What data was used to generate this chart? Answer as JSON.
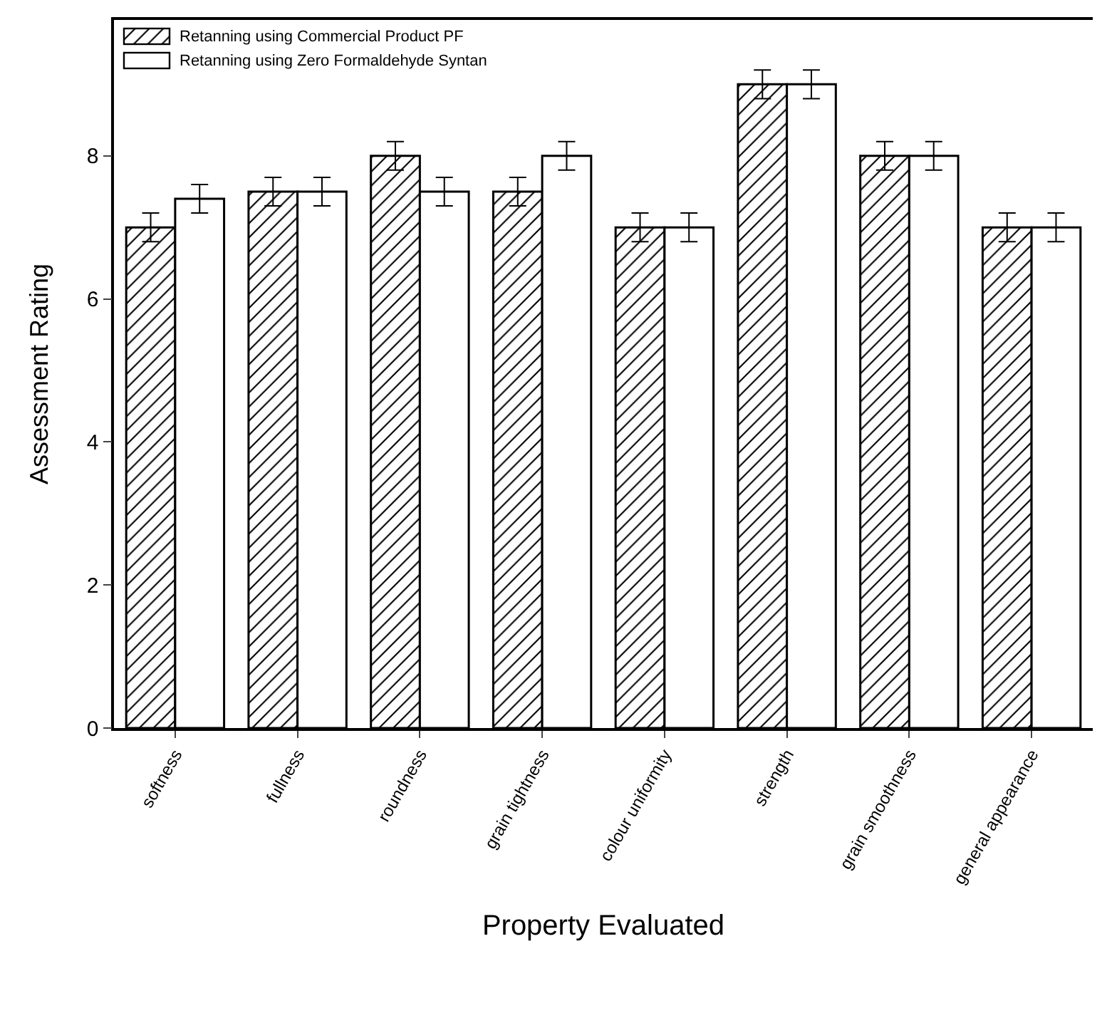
{
  "chart_data": {
    "type": "bar",
    "xlabel": "Property Evaluated",
    "ylabel": "Assessment Rating",
    "categories": [
      "softness",
      "fullness",
      "roundness",
      "grain tightness",
      "colour uniformity",
      "strength",
      "grain smoothness",
      "general appearance"
    ],
    "series": [
      {
        "name": "Retanning using Commercial Product PF",
        "color": "#000000",
        "values": [
          7,
          7.5,
          8,
          7.5,
          7,
          9,
          8,
          7
        ],
        "errors": [
          0.2,
          0.2,
          0.2,
          0.2,
          0.2,
          0.2,
          0.2,
          0.2
        ]
      },
      {
        "name": "Retanning using Zero Formaldehyde Syntan",
        "color": "#ffffff",
        "values": [
          7.4,
          7.5,
          7.5,
          8,
          7,
          9,
          8,
          7
        ],
        "errors": [
          0.2,
          0.2,
          0.2,
          0.2,
          0.2,
          0.2,
          0.2,
          0.2
        ]
      }
    ],
    "ylim": [
      0,
      9.9
    ],
    "yticks": [
      0,
      2,
      4,
      6,
      8
    ],
    "grid": false,
    "legend": "top left"
  }
}
